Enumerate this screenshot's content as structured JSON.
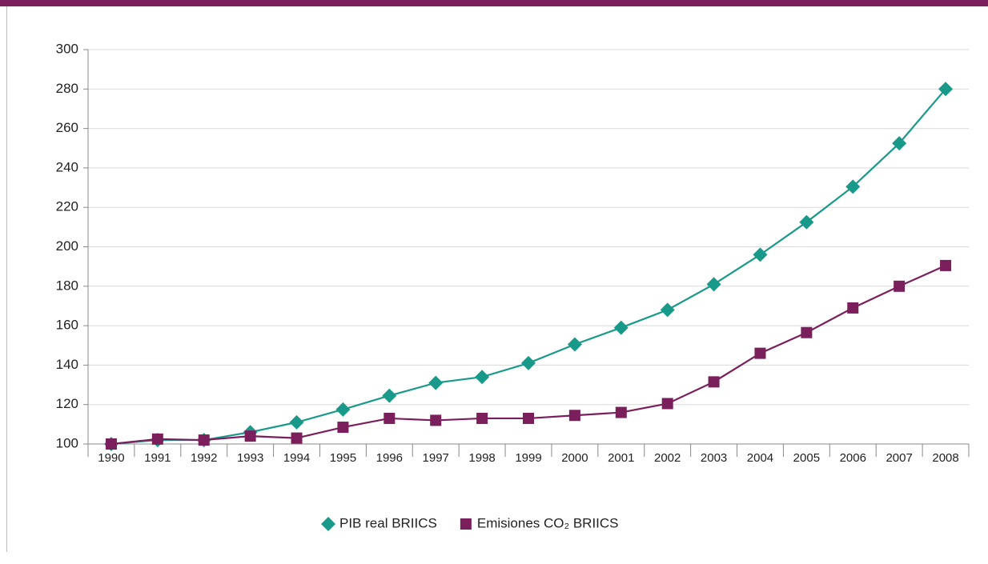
{
  "chart_data": {
    "type": "line",
    "categories": [
      "1990",
      "1991",
      "1992",
      "1993",
      "1994",
      "1995",
      "1996",
      "1997",
      "1998",
      "1999",
      "2000",
      "2001",
      "2002",
      "2003",
      "2004",
      "2005",
      "2006",
      "2007",
      "2008"
    ],
    "series": [
      {
        "name": "PIB real BRIICS",
        "color": "#19998a",
        "marker": "diamond",
        "values": [
          100,
          102,
          102,
          106,
          111,
          117.5,
          124.5,
          131,
          134,
          141,
          150.5,
          159,
          168,
          181,
          196,
          212.5,
          230.5,
          252.5,
          280
        ]
      },
      {
        "name": "Emisiones CO₂ BRIICS",
        "color": "#7b1f5c",
        "marker": "square",
        "values": [
          100,
          102.5,
          102,
          104,
          103,
          108.5,
          113,
          112,
          113,
          113,
          114.5,
          116,
          120.5,
          131.5,
          146,
          156.5,
          169,
          180,
          190.5
        ]
      }
    ],
    "ylim": [
      100,
      300
    ],
    "yticks": [
      100,
      120,
      140,
      160,
      180,
      200,
      220,
      240,
      260,
      280,
      300
    ],
    "grid": true,
    "legend": "bottom"
  }
}
